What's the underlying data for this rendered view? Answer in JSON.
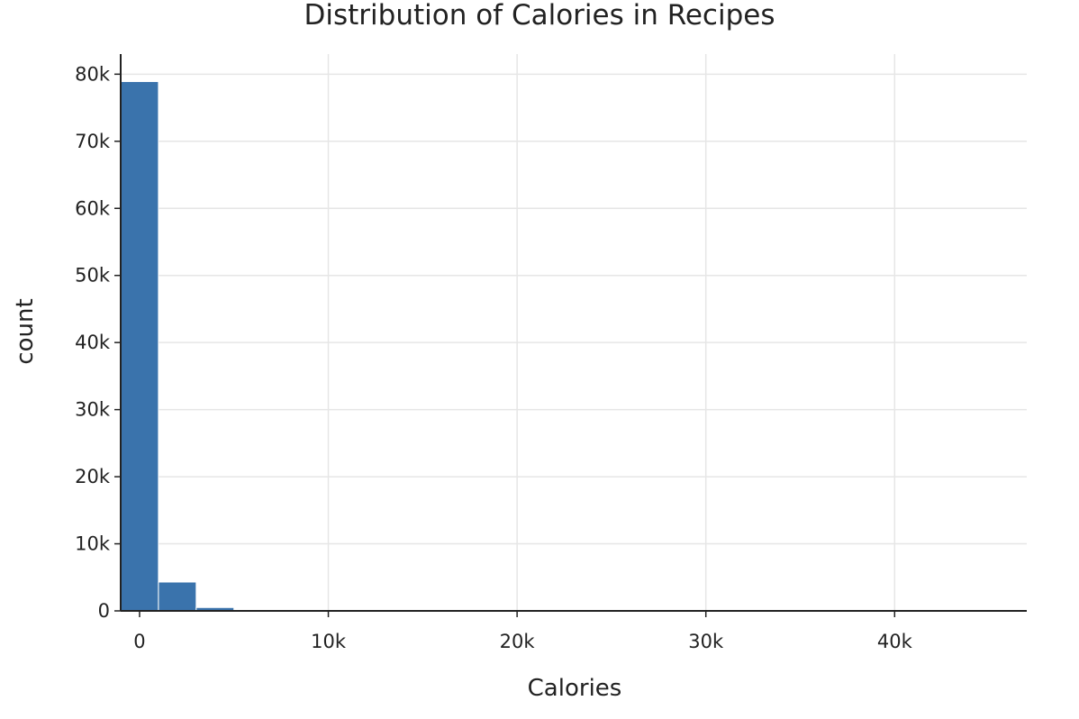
{
  "chart_data": {
    "type": "bar",
    "title": "Distribution of Calories in Recipes",
    "xlabel": "Calories",
    "ylabel": "count",
    "bin_width": 2000,
    "bins": [
      {
        "x0": -1000,
        "x1": 1000,
        "count": 78900
      },
      {
        "x0": 1000,
        "x1": 3000,
        "count": 4300
      },
      {
        "x0": 3000,
        "x1": 5000,
        "count": 500
      },
      {
        "x0": 5000,
        "x1": 7000,
        "count": 60
      },
      {
        "x0": 7000,
        "x1": 9000,
        "count": 15
      },
      {
        "x0": 9000,
        "x1": 11000,
        "count": 5
      },
      {
        "x0": 11000,
        "x1": 13000,
        "count": 2
      },
      {
        "x0": 13000,
        "x1": 15000,
        "count": 1
      },
      {
        "x0": 43000,
        "x1": 45000,
        "count": 1
      }
    ],
    "xlim": [
      -1000,
      47000
    ],
    "ylim": [
      0,
      83000
    ],
    "x_ticks": [
      0,
      10000,
      20000,
      30000,
      40000
    ],
    "x_tick_labels": [
      "0",
      "10k",
      "20k",
      "30k",
      "40k"
    ],
    "y_ticks": [
      0,
      10000,
      20000,
      30000,
      40000,
      50000,
      60000,
      70000,
      80000
    ],
    "y_tick_labels": [
      "0",
      "10k",
      "20k",
      "30k",
      "40k",
      "50k",
      "60k",
      "70k",
      "80k"
    ],
    "grid": true,
    "legend": "none",
    "colors": {
      "bar": "#3a73ac",
      "bar_edge": "#ffffff",
      "grid": "#e6e6e6",
      "axis": "#222222"
    }
  }
}
